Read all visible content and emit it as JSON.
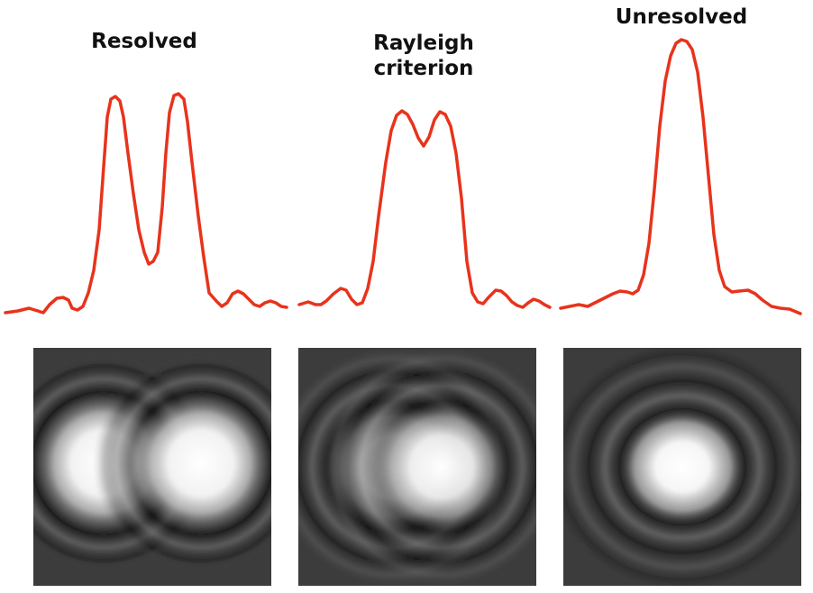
{
  "titles": {
    "resolved": "Resolved",
    "rayleigh": "Rayleigh\ncriterion",
    "unresolved": "Unresolved"
  },
  "colors": {
    "curve": "#e8331c",
    "image_background": "#3c3c3c",
    "title_text": "#111111"
  },
  "panels": [
    {
      "key": "resolved",
      "separation": "large"
    },
    {
      "key": "rayleigh",
      "separation": "at Rayleigh limit"
    },
    {
      "key": "unresolved",
      "separation": "small"
    }
  ]
}
